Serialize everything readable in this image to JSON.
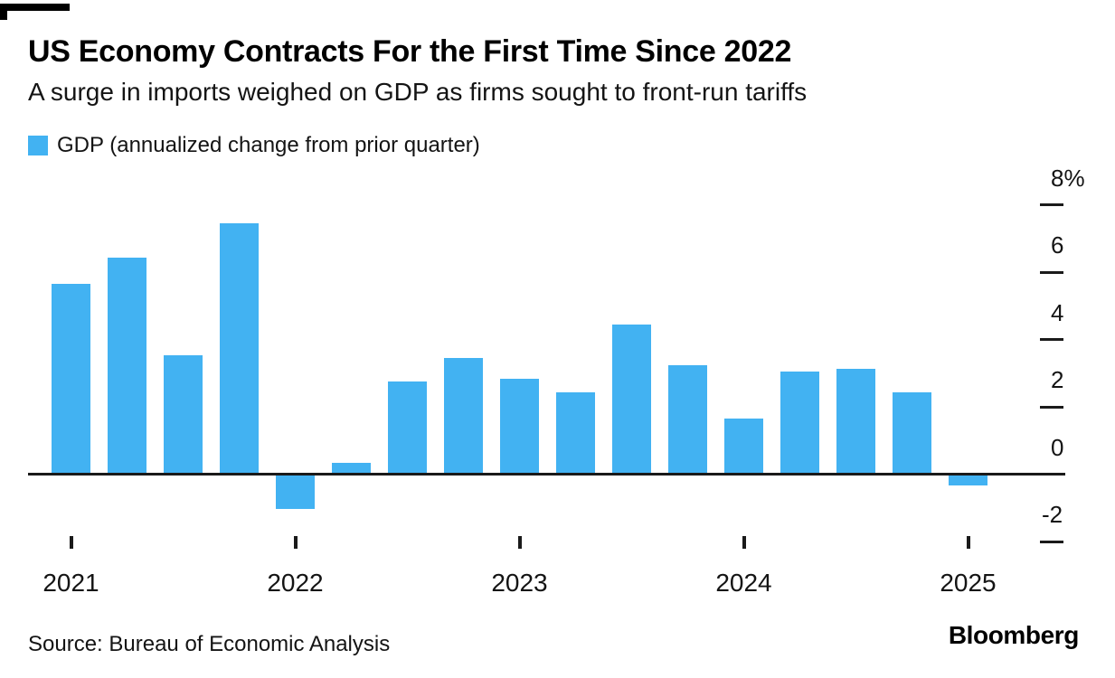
{
  "header": {
    "title": "US Economy Contracts For the First Time Since 2022",
    "subtitle": "A surge in imports weighed on GDP as firms sought to front-run tariffs"
  },
  "legend": {
    "label": "GDP (annualized change from prior quarter)",
    "swatch_color": "#42b2f2"
  },
  "chart_data": {
    "type": "bar",
    "title": "US Economy Contracts For the First Time Since 2022",
    "subtitle": "A surge in imports weighed on GDP as firms sought to front-run tariffs",
    "legend_entries": [
      "GDP (annualized change from prior quarter)"
    ],
    "legend_position": "top-left",
    "x": [
      "2021 Q1",
      "2021 Q2",
      "2021 Q3",
      "2021 Q4",
      "2022 Q1",
      "2022 Q2",
      "2022 Q3",
      "2022 Q4",
      "2023 Q1",
      "2023 Q2",
      "2023 Q3",
      "2023 Q4",
      "2024 Q1",
      "2024 Q2",
      "2024 Q3",
      "2024 Q4",
      "2025 Q1"
    ],
    "values": [
      5.6,
      6.4,
      3.5,
      7.4,
      -1.0,
      0.3,
      2.7,
      3.4,
      2.8,
      2.4,
      4.4,
      3.2,
      1.6,
      3.0,
      3.1,
      2.4,
      -0.3
    ],
    "bar_color": "#42b2f2",
    "grid": false,
    "ylim": [
      -2.8,
      8.4
    ],
    "y_axis_side": "right",
    "y_ticks": [
      {
        "value": 8,
        "label": "8%"
      },
      {
        "value": 6,
        "label": "6"
      },
      {
        "value": 4,
        "label": "4"
      },
      {
        "value": 2,
        "label": "2"
      },
      {
        "value": 0,
        "label": "0"
      },
      {
        "value": -2,
        "label": "-2"
      }
    ],
    "x_ticks": [
      {
        "quarter_index": 0,
        "label": "2021"
      },
      {
        "quarter_index": 4,
        "label": "2022"
      },
      {
        "quarter_index": 8,
        "label": "2023"
      },
      {
        "quarter_index": 12,
        "label": "2024"
      },
      {
        "quarter_index": 16,
        "label": "2025"
      }
    ]
  },
  "footer": {
    "source": "Source: Bureau of Economic Analysis",
    "brand": "Bloomberg"
  }
}
